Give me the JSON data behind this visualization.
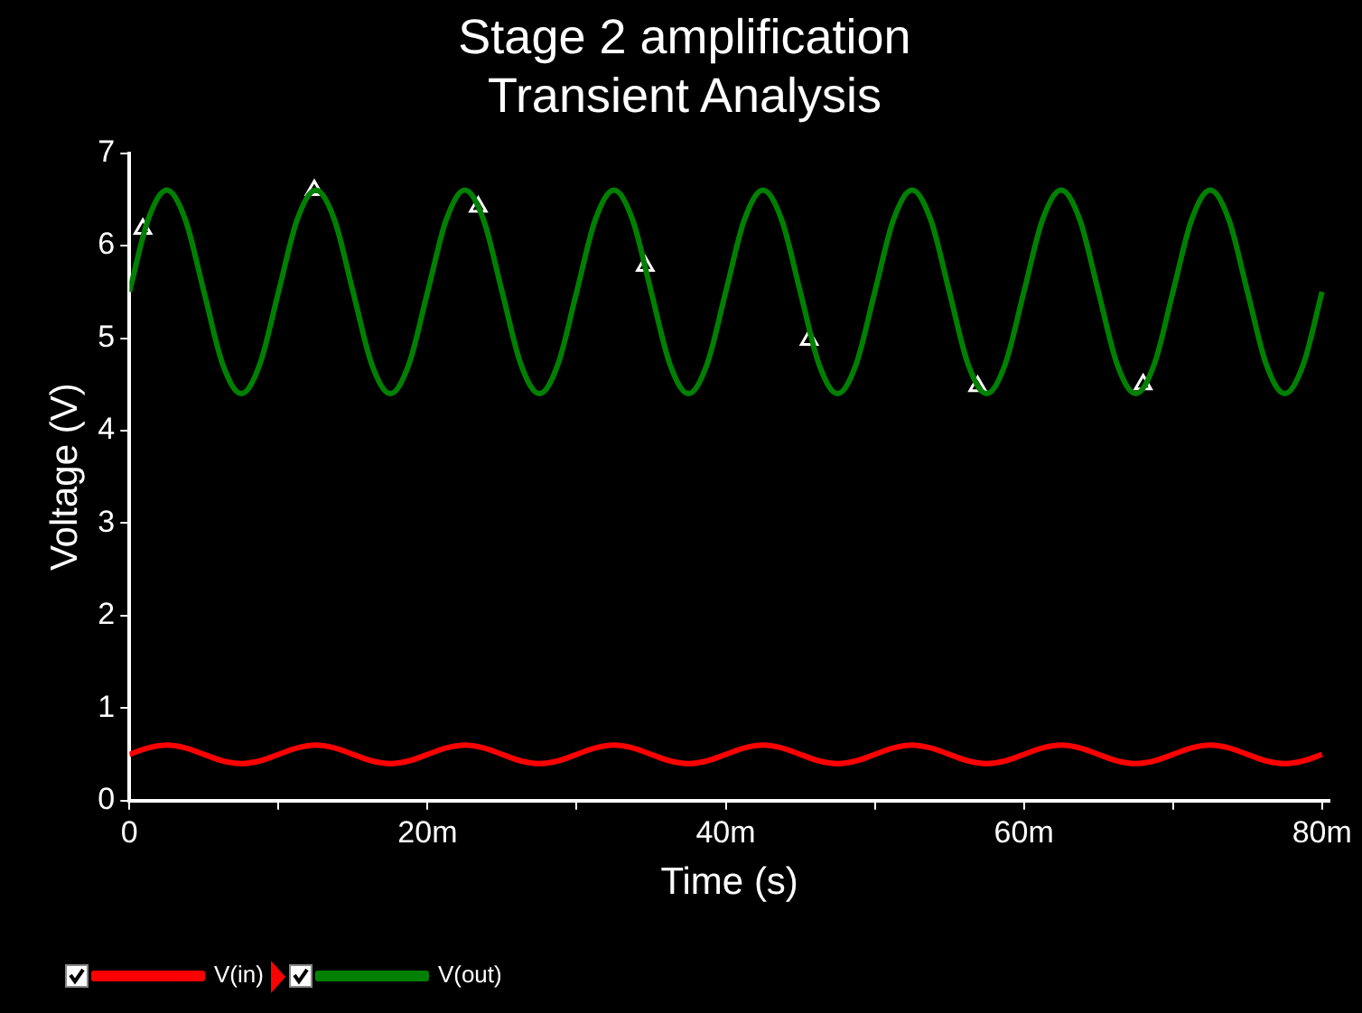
{
  "chart_data": {
    "type": "line",
    "title": "Stage 2 amplification",
    "subtitle": "Transient Analysis",
    "xlabel": "Time (s)",
    "ylabel": "Voltage (V)",
    "x": [
      0,
      1.25,
      2.5,
      3.75,
      5,
      6.25,
      7.5,
      8.75,
      10,
      11.25,
      12.5,
      13.75,
      15,
      16.25,
      17.5,
      18.75,
      20,
      21.25,
      22.5,
      23.75,
      25,
      26.25,
      27.5,
      28.75,
      30,
      31.25,
      32.5,
      33.75,
      35,
      36.25,
      37.5,
      38.75,
      40,
      41.25,
      42.5,
      43.75,
      45,
      46.25,
      47.5,
      48.75,
      50,
      51.25,
      52.5,
      53.75,
      55,
      56.25,
      57.5,
      58.75,
      60,
      61.25,
      62.5,
      63.75,
      65,
      66.25,
      67.5,
      68.75,
      70,
      71.25,
      72.5,
      73.75,
      75,
      76.25,
      77.5,
      78.75,
      80
    ],
    "series": [
      {
        "name": "V(in)",
        "color": "#ff0000",
        "values": [
          0.5,
          0.57,
          0.6,
          0.57,
          0.5,
          0.43,
          0.4,
          0.43,
          0.5,
          0.57,
          0.6,
          0.57,
          0.5,
          0.43,
          0.4,
          0.43,
          0.5,
          0.57,
          0.6,
          0.57,
          0.5,
          0.43,
          0.4,
          0.43,
          0.5,
          0.57,
          0.6,
          0.57,
          0.5,
          0.43,
          0.4,
          0.43,
          0.5,
          0.57,
          0.6,
          0.57,
          0.5,
          0.43,
          0.4,
          0.43,
          0.5,
          0.57,
          0.6,
          0.57,
          0.5,
          0.43,
          0.4,
          0.43,
          0.5,
          0.57,
          0.6,
          0.57,
          0.5,
          0.43,
          0.4,
          0.43,
          0.5,
          0.57,
          0.6,
          0.57,
          0.5,
          0.43,
          0.4,
          0.43,
          0.5
        ]
      },
      {
        "name": "V(out)",
        "color": "#008000",
        "values": [
          5.5,
          6.28,
          6.6,
          6.28,
          5.5,
          4.72,
          4.4,
          4.72,
          5.5,
          6.28,
          6.6,
          6.28,
          5.5,
          4.72,
          4.4,
          4.72,
          5.5,
          6.28,
          6.6,
          6.28,
          5.5,
          4.72,
          4.4,
          4.72,
          5.5,
          6.28,
          6.6,
          6.28,
          5.5,
          4.72,
          4.4,
          4.72,
          5.5,
          6.28,
          6.6,
          6.28,
          5.5,
          4.72,
          4.4,
          4.72,
          5.5,
          6.28,
          6.6,
          6.28,
          5.5,
          4.72,
          4.4,
          4.72,
          5.5,
          6.28,
          6.6,
          6.28,
          5.5,
          4.72,
          4.4,
          4.72,
          5.5,
          6.28,
          6.6,
          6.28,
          5.5,
          4.72,
          4.4,
          4.72,
          5.5
        ]
      },
      {
        "type": "scatter",
        "marker": "triangle",
        "color": "#ffffff",
        "x": [
          0.9,
          12.4,
          23.4,
          34.6,
          45.6,
          56.9,
          68
        ],
        "values": [
          6.18,
          6.6,
          6.42,
          5.78,
          4.98,
          4.48,
          4.5
        ]
      }
    ],
    "xlim": [
      0,
      80.5
    ],
    "xticks": [
      0,
      {
        "value": 10,
        "label": null
      },
      {
        "value": 20,
        "label": "20m"
      },
      {
        "value": 30,
        "label": null
      },
      {
        "value": 40,
        "label": "40m"
      },
      {
        "value": 50,
        "label": null
      },
      {
        "value": 60,
        "label": "60m"
      },
      {
        "value": 70,
        "label": null
      },
      {
        "value": 80,
        "label": "80m"
      }
    ],
    "ylim": [
      0,
      7
    ],
    "yticks": [
      0,
      1,
      2,
      3,
      4,
      5,
      6,
      7
    ],
    "grid": false,
    "legend": "bottom left"
  }
}
